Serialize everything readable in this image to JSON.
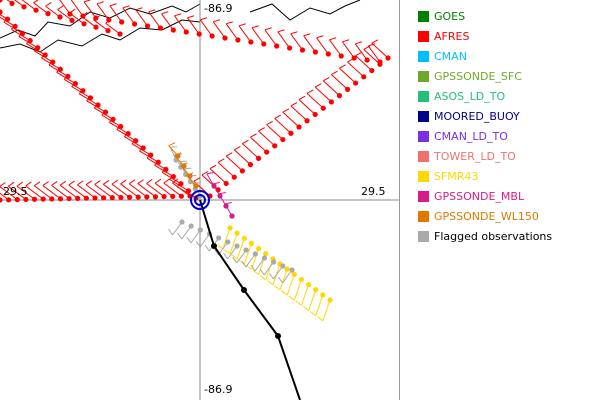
{
  "map": {
    "labels": {
      "top_lon": "-86.9",
      "bottom_lon": "-86.9",
      "left_lat": "29.5",
      "right_lat": "29.5"
    },
    "colors": {
      "afres": "#ff0000",
      "sfmr": "#ffd800",
      "flagged": "#aaaaaa",
      "track": "#000000",
      "center_ring": "#0000cc",
      "coast": "#000000",
      "gpssonde_mbl": "#d81b88",
      "gpssonde_wl150": "#e07800"
    }
  },
  "legend": {
    "items": [
      {
        "label": "GOES",
        "color": "#008000"
      },
      {
        "label": "AFRES",
        "color": "#ff0000"
      },
      {
        "label": "CMAN",
        "color": "#00bfff"
      },
      {
        "label": "GPSSONDE_SFC",
        "color": "#6fa82a"
      },
      {
        "label": "ASOS_LD_TO",
        "color": "#22c07a"
      },
      {
        "label": "MOORED_BUOY",
        "color": "#00008b"
      },
      {
        "label": "CMAN_LD_TO",
        "color": "#7b2fe0"
      },
      {
        "label": "TOWER_LD_TO",
        "color": "#f07070"
      },
      {
        "label": "SFMR43",
        "color": "#ffd800"
      },
      {
        "label": "GPSSONDE_MBL",
        "color": "#d81b88"
      },
      {
        "label": "GPSSONDE_WL150",
        "color": "#e07800"
      },
      {
        "label": "Flagged observations",
        "color": "#aaaaaa"
      }
    ]
  }
}
